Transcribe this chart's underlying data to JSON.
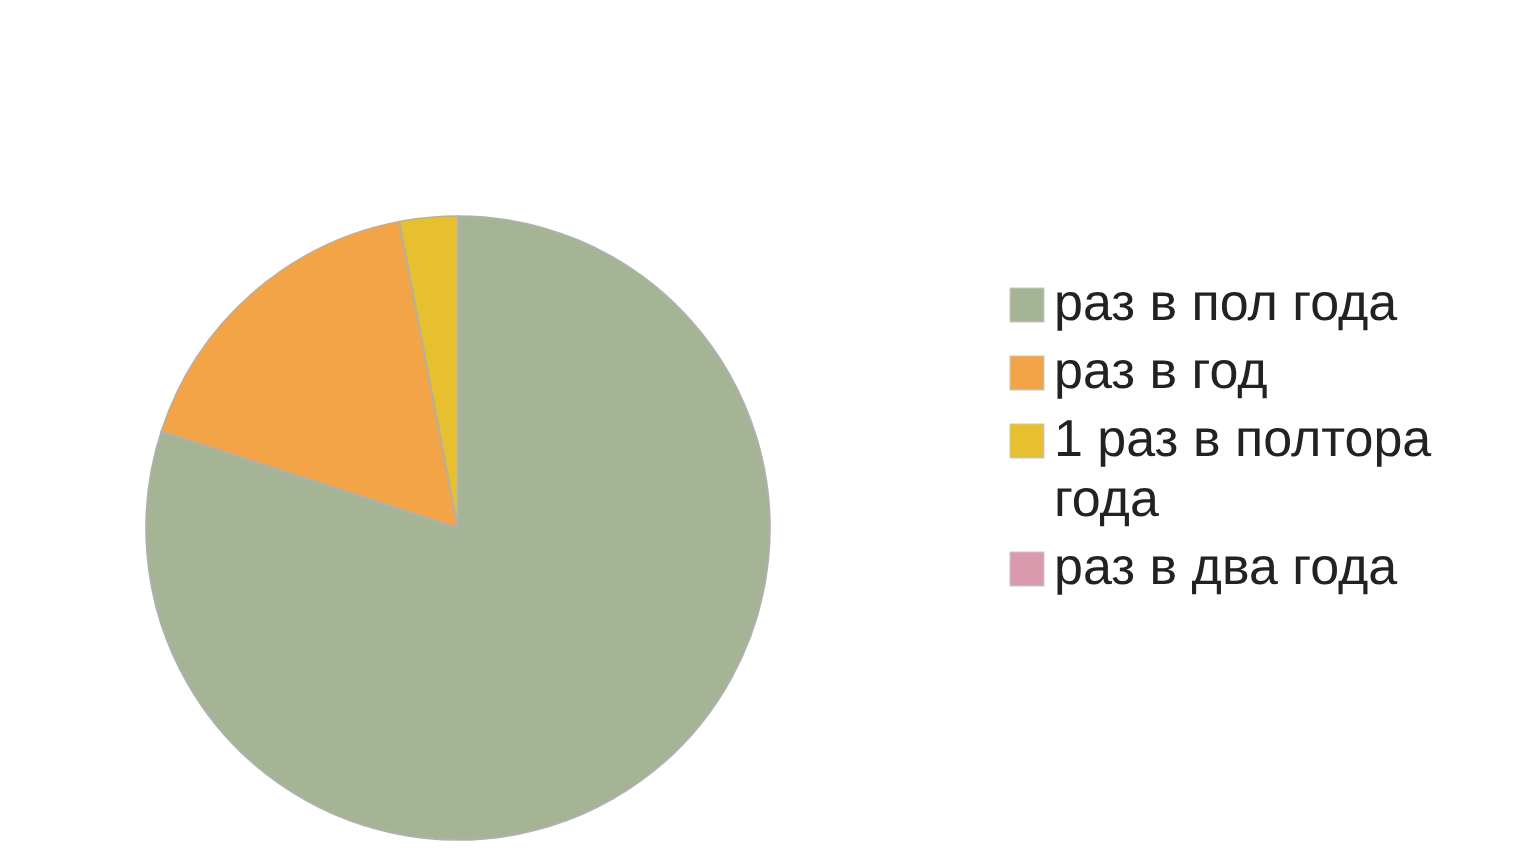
{
  "chart_data": {
    "type": "pie",
    "categories": [
      "раз в пол года",
      "раз в год",
      "1 раз в полтора года",
      "раз в два года"
    ],
    "values": [
      80,
      17,
      3,
      0
    ],
    "colors": [
      "#a4b494",
      "#f2a446",
      "#e6c02e",
      "#d89aac"
    ],
    "legend": "right"
  }
}
